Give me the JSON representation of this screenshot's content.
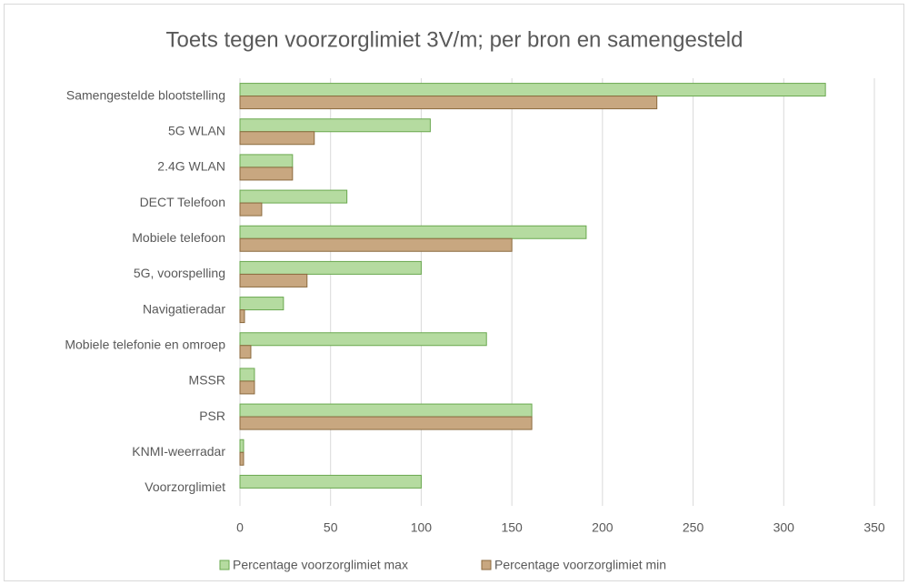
{
  "chart_data": {
    "type": "bar",
    "orientation": "horizontal",
    "title": "Toets tegen voorzorglimiet 3V/m; per bron en samengesteld",
    "categories": [
      "Samengestelde blootstelling",
      "5G WLAN",
      "2.4G WLAN",
      "DECT Telefoon",
      "Mobiele telefoon",
      "5G, voorspelling",
      "Navigatieradar",
      "Mobiele telefonie en omroep",
      "MSSR",
      "PSR",
      "KNMI-weerradar",
      "Voorzorglimiet"
    ],
    "series": [
      {
        "name": "Percentage voorzorglimiet max",
        "color": "#b5dba0",
        "values": [
          323,
          105,
          29,
          59,
          191,
          100,
          24,
          136,
          8,
          161,
          2,
          100
        ]
      },
      {
        "name": "Percentage voorzorglimiet min",
        "color": "#c8a780",
        "values": [
          230,
          41,
          29,
          12,
          150,
          37,
          2.5,
          6,
          8,
          161,
          2,
          null
        ]
      }
    ],
    "xlim": [
      0,
      350
    ],
    "xticks": [
      0,
      50,
      100,
      150,
      200,
      250,
      300,
      350
    ],
    "grid": true,
    "legend": "bottom"
  }
}
